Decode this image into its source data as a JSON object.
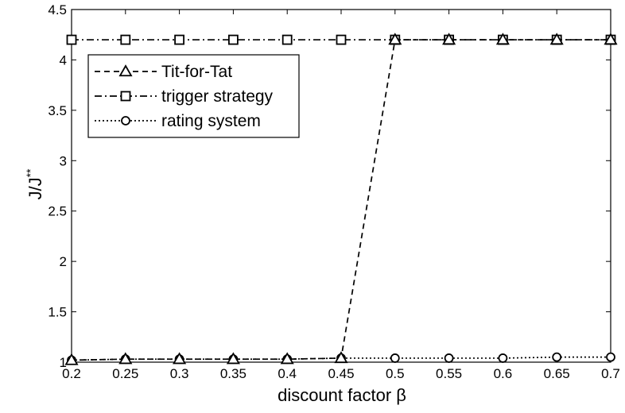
{
  "chart_data": {
    "type": "line",
    "xlabel": "discount factor β",
    "ylabel": "J/J",
    "ylabel_superscript": "**",
    "x": [
      0.2,
      0.25,
      0.3,
      0.35,
      0.4,
      0.45,
      0.5,
      0.55,
      0.6,
      0.65,
      0.7
    ],
    "x_tick_labels": [
      "0.2",
      "0.25",
      "0.3",
      "0.35",
      "0.4",
      "0.45",
      "0.5",
      "0.55",
      "0.6",
      "0.65",
      "0.7"
    ],
    "y_ticks": [
      1,
      1.5,
      2,
      2.5,
      3,
      3.5,
      4,
      4.5
    ],
    "y_tick_labels": [
      "1",
      "1.5",
      "2",
      "2.5",
      "3",
      "3.5",
      "4",
      "4.5"
    ],
    "xlim": [
      0.2,
      0.7
    ],
    "ylim": [
      1,
      4.5
    ],
    "grid": false,
    "legend_position": "top-left",
    "series": [
      {
        "name": "Tit-for-Tat",
        "line_style": "dashed",
        "marker": "triangle",
        "color": "#000000",
        "values": [
          1.02,
          1.03,
          1.03,
          1.03,
          1.03,
          1.04,
          4.2,
          4.2,
          4.2,
          4.2,
          4.2
        ]
      },
      {
        "name": "trigger strategy",
        "line_style": "dash-dot",
        "marker": "square",
        "color": "#000000",
        "values": [
          4.2,
          4.2,
          4.2,
          4.2,
          4.2,
          4.2,
          4.2,
          4.2,
          4.2,
          4.2,
          4.2
        ]
      },
      {
        "name": "rating system",
        "line_style": "dotted",
        "marker": "circle",
        "color": "#000000",
        "values": [
          1.02,
          1.03,
          1.03,
          1.03,
          1.03,
          1.04,
          1.04,
          1.04,
          1.04,
          1.05,
          1.05
        ]
      }
    ]
  }
}
